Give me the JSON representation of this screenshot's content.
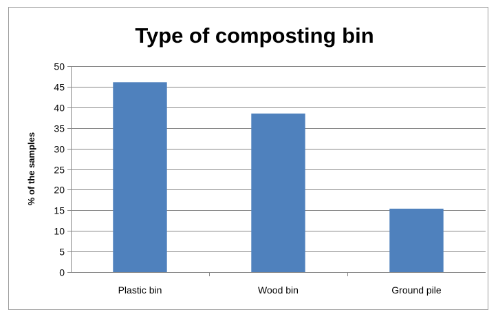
{
  "chart_data": {
    "type": "bar",
    "title": "Type of composting bin",
    "xlabel": "",
    "ylabel": "% of the samples",
    "categories": [
      "Plastic bin",
      "Wood bin",
      "Ground pile"
    ],
    "values": [
      46.1,
      38.5,
      15.4
    ],
    "ylim": [
      0,
      50
    ],
    "yticks": [
      "0",
      "5",
      "10",
      "15",
      "20",
      "25",
      "30",
      "35",
      "40",
      "45",
      "50"
    ],
    "grid": "horizontal",
    "legend": "none",
    "bar_color": "#4f81bd",
    "grid_color": "#868686"
  }
}
